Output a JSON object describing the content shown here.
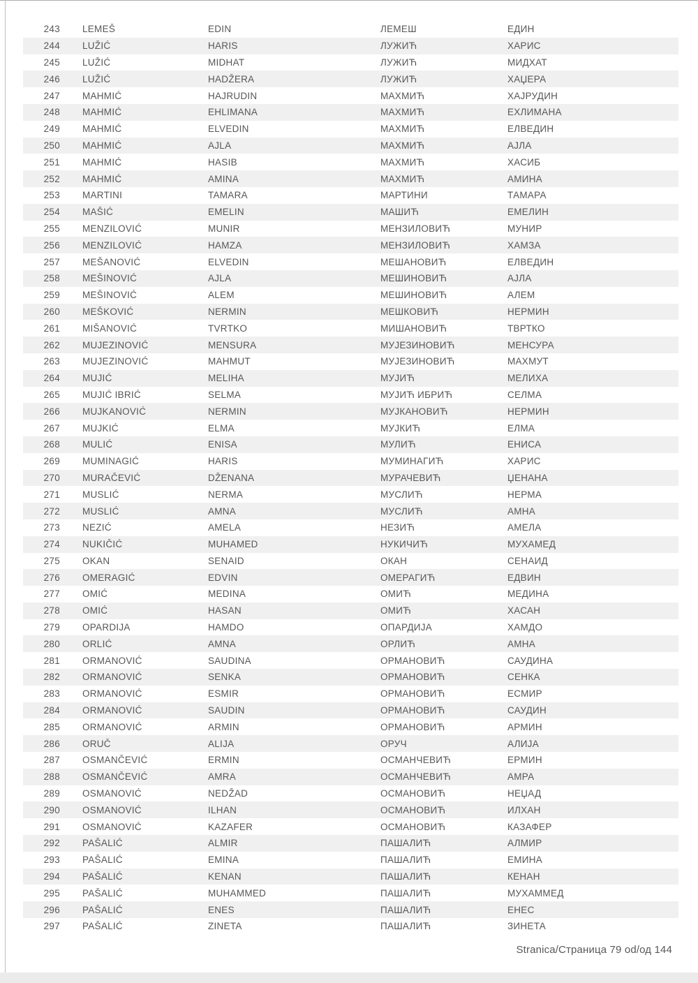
{
  "colors": {
    "row_stripe": "#f0f0f0",
    "text": "#575757",
    "edge_line": "#c0c0c0",
    "bottom_strip": "#ebebeb"
  },
  "table": {
    "column_keys": [
      "number",
      "surname_latin",
      "given_name_latin",
      "surname_cyrillic",
      "given_name_cyrillic"
    ],
    "rows": [
      [
        "243",
        "LEMEŠ",
        "EDIN",
        "ЛЕМЕШ",
        "ЕДИН"
      ],
      [
        "244",
        "LUŽIĆ",
        "HARIS",
        "ЛУЖИЋ",
        "ХАРИС"
      ],
      [
        "245",
        "LUŽIĆ",
        "MIDHAT",
        "ЛУЖИЋ",
        "МИДХАТ"
      ],
      [
        "246",
        "LUŽIĆ",
        "HADŽERA",
        "ЛУЖИЋ",
        "ХАЏЕРА"
      ],
      [
        "247",
        "MAHMIĆ",
        "HAJRUDIN",
        "МАХМИЋ",
        "ХАЈРУДИН"
      ],
      [
        "248",
        "MAHMIĆ",
        "EHLIMANA",
        "МАХМИЋ",
        "ЕХЛИМАНА"
      ],
      [
        "249",
        "MAHMIĆ",
        "ELVEDIN",
        "МАХМИЋ",
        "ЕЛВЕДИН"
      ],
      [
        "250",
        "MAHMIĆ",
        "AJLA",
        "МАХМИЋ",
        "АЈЛА"
      ],
      [
        "251",
        "MAHMIĆ",
        "HASIB",
        "МАХМИЋ",
        "ХАСИБ"
      ],
      [
        "252",
        "MAHMIĆ",
        "AMINA",
        "МАХМИЋ",
        "АМИНА"
      ],
      [
        "253",
        "MARTINI",
        "TAMARA",
        "МАРТИНИ",
        "ТАМАРА"
      ],
      [
        "254",
        "MAŠIĆ",
        "EMELIN",
        "МАШИЋ",
        "ЕМЕЛИН"
      ],
      [
        "255",
        "MENZILOVIĆ",
        "MUNIR",
        "МЕНЗИЛОВИЋ",
        "МУНИР"
      ],
      [
        "256",
        "MENZILOVIĆ",
        "HAMZA",
        "МЕНЗИЛОВИЋ",
        "ХАМЗА"
      ],
      [
        "257",
        "MEŠANOVIĆ",
        "ELVEDIN",
        "МЕШАНОВИЋ",
        "ЕЛВЕДИН"
      ],
      [
        "258",
        "MEŠINOVIĆ",
        "AJLA",
        "МЕШИНОВИЋ",
        "АЈЛА"
      ],
      [
        "259",
        "MEŠINOVIĆ",
        "ALEM",
        "МЕШИНОВИЋ",
        "АЛЕМ"
      ],
      [
        "260",
        "MEŠKOVIĆ",
        "NERMIN",
        "МЕШКОВИЋ",
        "НЕРМИН"
      ],
      [
        "261",
        "MIŠANOVIĆ",
        "TVRTKO",
        "МИШАНОВИЋ",
        "ТВРТКО"
      ],
      [
        "262",
        "MUJEZINOVIĆ",
        "MENSURA",
        "МУЈЕЗИНОВИЋ",
        "МЕНСУРА"
      ],
      [
        "263",
        "MUJEZINOVIĆ",
        "MAHMUT",
        "МУЈЕЗИНОВИЋ",
        "МАХМУТ"
      ],
      [
        "264",
        "MUJIĆ",
        "MELIHA",
        "МУЈИЋ",
        "МЕЛИХА"
      ],
      [
        "265",
        "MUJIĆ IBRIĆ",
        "SELMA",
        "МУЈИЋ ИБРИЋ",
        "СЕЛМА"
      ],
      [
        "266",
        "MUJKANOVIĆ",
        "NERMIN",
        "МУЈКАНОВИЋ",
        "НЕРМИН"
      ],
      [
        "267",
        "MUJKIĆ",
        "ELMA",
        "МУЈКИЋ",
        "ЕЛМА"
      ],
      [
        "268",
        "MULIĆ",
        "ENISA",
        "МУЛИЋ",
        "ЕНИСА"
      ],
      [
        "269",
        "MUMINAGIĆ",
        "HARIS",
        "МУМИНАГИЋ",
        "ХАРИС"
      ],
      [
        "270",
        "MURAČEVIĆ",
        "DŽENANA",
        "МУРАЧЕВИЋ",
        "ЏЕНАНА"
      ],
      [
        "271",
        "MUSLIĆ",
        "NERMA",
        "МУСЛИЋ",
        "НЕРМА"
      ],
      [
        "272",
        "MUSLIĆ",
        "AMNA",
        "МУСЛИЋ",
        "АМНА"
      ],
      [
        "273",
        "NEZIĆ",
        "AMELA",
        "НЕЗИЋ",
        "АМЕЛА"
      ],
      [
        "274",
        "NUKIČIĆ",
        "MUHAMED",
        "НУКИЧИЋ",
        "МУХАМЕД"
      ],
      [
        "275",
        "OKAN",
        "SENAID",
        "ОКАН",
        "СЕНАИД"
      ],
      [
        "276",
        "OMERAGIĆ",
        "EDVIN",
        "ОМЕРАГИЋ",
        "ЕДВИН"
      ],
      [
        "277",
        "OMIĆ",
        "MEDINA",
        "ОМИЋ",
        "МЕДИНА"
      ],
      [
        "278",
        "OMIĆ",
        "HASAN",
        "ОМИЋ",
        "ХАСАН"
      ],
      [
        "279",
        "OPARDIJA",
        "HAMDO",
        "ОПАРДИЈА",
        "ХАМДО"
      ],
      [
        "280",
        "ORLIĆ",
        "AMNA",
        "ОРЛИЋ",
        "АМНА"
      ],
      [
        "281",
        "ORMANOVIĆ",
        "SAUDINA",
        "ОРМАНОВИЋ",
        "САУДИНА"
      ],
      [
        "282",
        "ORMANOVIĆ",
        "SENKA",
        "ОРМАНОВИЋ",
        "СЕНКА"
      ],
      [
        "283",
        "ORMANOVIĆ",
        "ESMIR",
        "ОРМАНОВИЋ",
        "ЕСМИР"
      ],
      [
        "284",
        "ORMANOVIĆ",
        "SAUDIN",
        "ОРМАНОВИЋ",
        "САУДИН"
      ],
      [
        "285",
        "ORMANOVIĆ",
        "ARMIN",
        "ОРМАНОВИЋ",
        "АРМИН"
      ],
      [
        "286",
        "ORUČ",
        "ALIJA",
        "ОРУЧ",
        "АЛИЈА"
      ],
      [
        "287",
        "OSMANČEVIĆ",
        "ERMIN",
        "ОСМАНЧЕВИЋ",
        "ЕРМИН"
      ],
      [
        "288",
        "OSMANČEVIĆ",
        "AMRA",
        "ОСМАНЧЕВИЋ",
        "АМРА"
      ],
      [
        "289",
        "OSMANOVIĆ",
        "NEDŽAD",
        "ОСМАНОВИЋ",
        "НЕЏАД"
      ],
      [
        "290",
        "OSMANOVIĆ",
        "ILHAN",
        "ОСМАНОВИЋ",
        "ИЛХАН"
      ],
      [
        "291",
        "OSMANOVIĆ",
        "KAZAFER",
        "ОСМАНОВИЋ",
        "КАЗАФЕР"
      ],
      [
        "292",
        "PAŠALIĆ",
        "ALMIR",
        "ПАШАЛИЋ",
        "АЛМИР"
      ],
      [
        "293",
        "PAŠALIĆ",
        "EMINA",
        "ПАШАЛИЋ",
        "ЕМИНА"
      ],
      [
        "294",
        "PAŠALIĆ",
        "KENAN",
        "ПАШАЛИЋ",
        "КЕНАН"
      ],
      [
        "295",
        "PAŠALIĆ",
        "MUHAMMED",
        "ПАШАЛИЋ",
        "МУХАММЕД"
      ],
      [
        "296",
        "PAŠALIĆ",
        "ENES",
        "ПАШАЛИЋ",
        "ЕНЕС"
      ],
      [
        "297",
        "PAŠALIĆ",
        "ZINETA",
        "ПАШАЛИЋ",
        "ЗИНЕТА"
      ]
    ]
  },
  "footer": {
    "page_indicator": "Stranica/Страница 79 od/од 144"
  }
}
